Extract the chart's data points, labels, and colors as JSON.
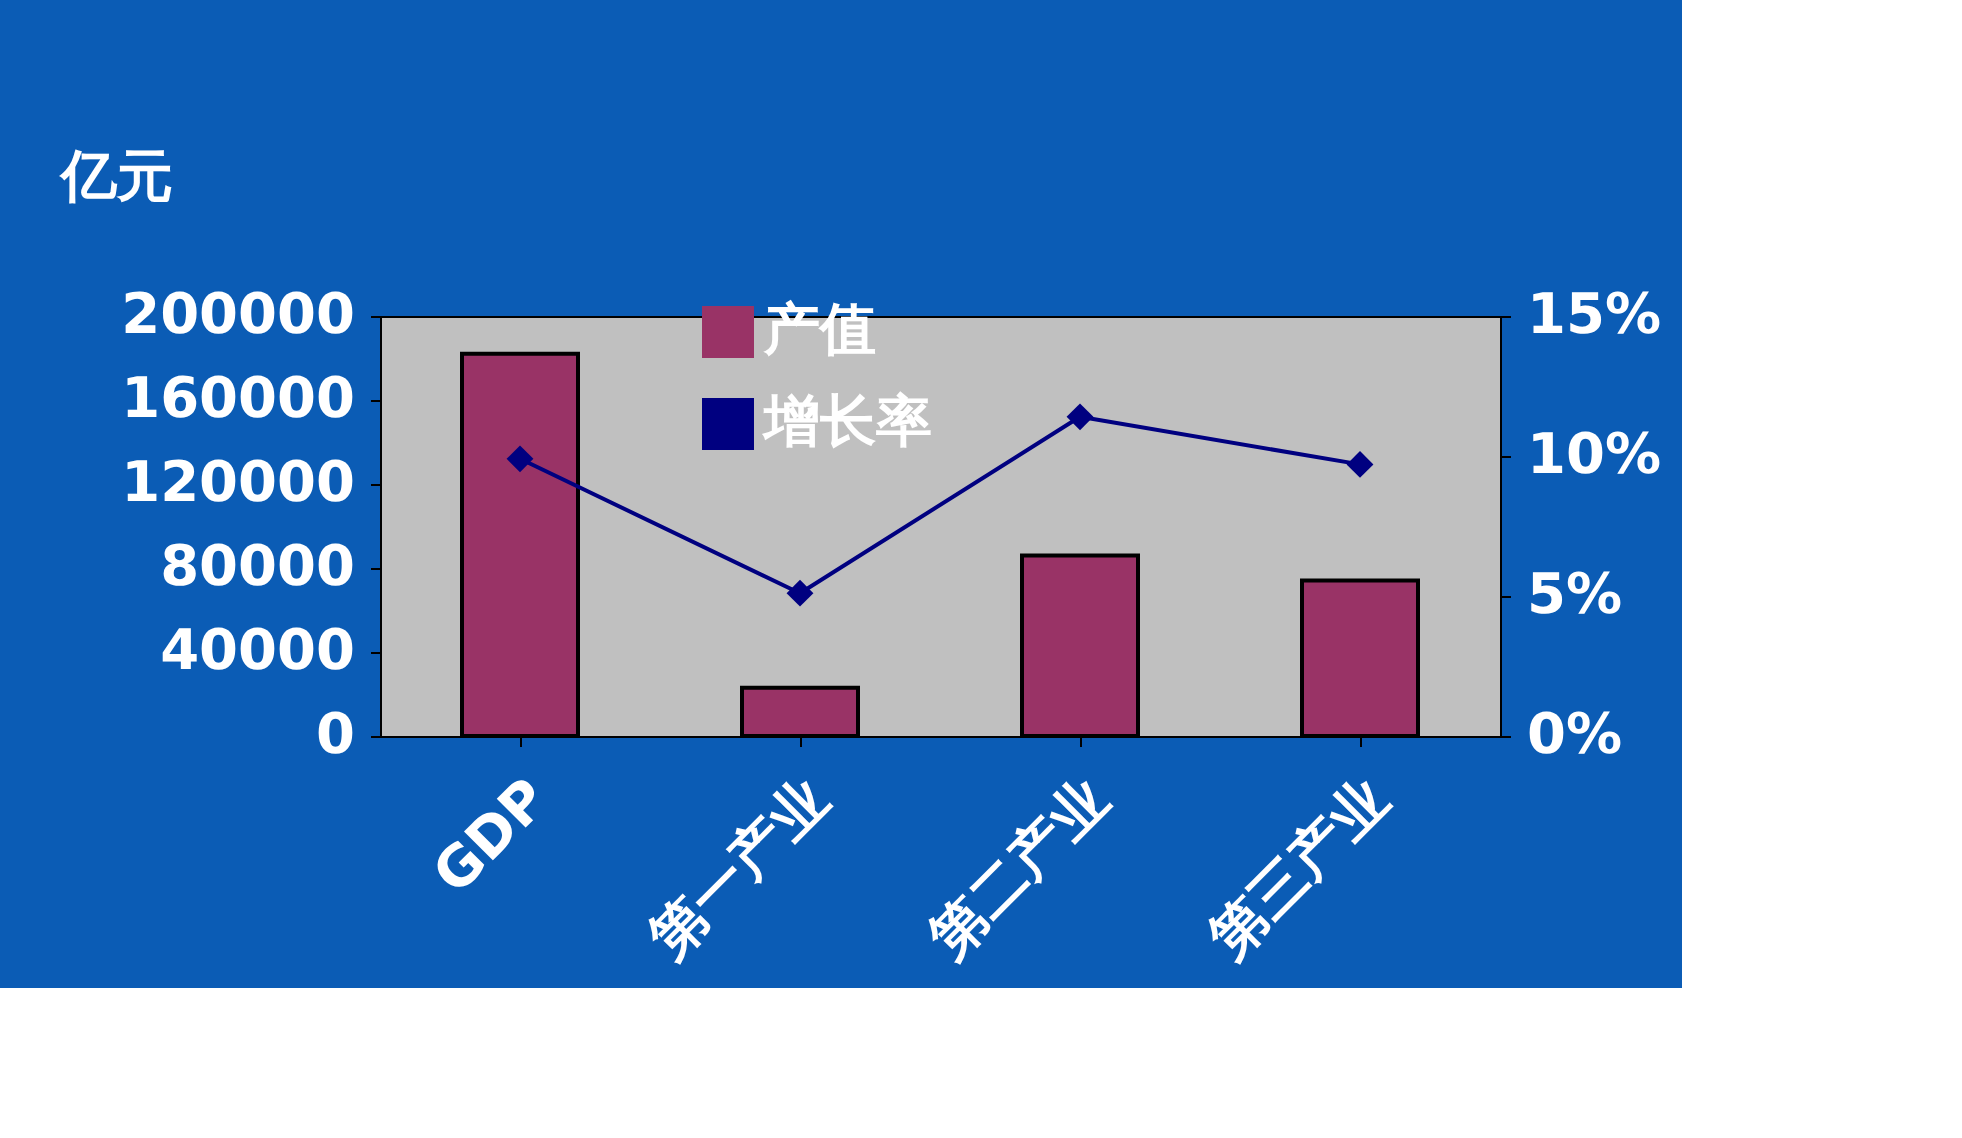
{
  "chart_data": {
    "type": "bar",
    "ylabel": "亿元",
    "categories": [
      "GDP",
      "第一产业",
      "第二产业",
      "第三产业"
    ],
    "series": [
      {
        "name": "产值",
        "color": "#993366",
        "values": [
          182000,
          23000,
          86000,
          74000
        ]
      },
      {
        "name": "增长率",
        "type": "line",
        "axis": "y2",
        "color": "#000080",
        "marker": "diamond",
        "values": [
          9.9,
          5.1,
          11.4,
          9.7
        ]
      }
    ],
    "ylim": [
      0,
      200000
    ],
    "yticks": [
      0,
      40000,
      80000,
      120000,
      160000,
      200000
    ],
    "y2lim": [
      0,
      15
    ],
    "y2ticks": [
      {
        "value": 0,
        "label": "0%"
      },
      {
        "value": 5,
        "label": "5%"
      },
      {
        "value": 10,
        "label": "10%"
      },
      {
        "value": 15,
        "label": "15%"
      }
    ],
    "grid": false,
    "legend": "top"
  }
}
